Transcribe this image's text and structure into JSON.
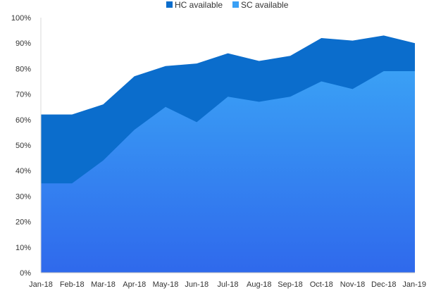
{
  "chart_data": {
    "type": "area",
    "stacked": false,
    "categories": [
      "Jan-18",
      "Feb-18",
      "Mar-18",
      "Apr-18",
      "May-18",
      "Jun-18",
      "Jul-18",
      "Aug-18",
      "Sep-18",
      "Oct-18",
      "Nov-18",
      "Dec-18",
      "Jan-19"
    ],
    "series": [
      {
        "name": "HC available",
        "color": "#0b6dcc",
        "values": [
          62,
          62,
          66,
          77,
          81,
          82,
          86,
          83,
          85,
          92,
          91,
          93,
          90
        ]
      },
      {
        "name": "SC available",
        "color": "#3aa0f5",
        "color_bottom": "#2f69ec",
        "values": [
          35,
          35,
          44,
          56,
          65,
          59,
          69,
          67,
          69,
          75,
          72,
          79,
          79
        ]
      }
    ],
    "y_ticks": [
      "0%",
      "10%",
      "20%",
      "30%",
      "40%",
      "50%",
      "60%",
      "70%",
      "80%",
      "90%",
      "100%"
    ],
    "ylim": [
      0,
      100
    ],
    "y_unit": "%",
    "legend_position": "top-center",
    "grid": false,
    "title": "",
    "xlabel": "",
    "ylabel": ""
  }
}
